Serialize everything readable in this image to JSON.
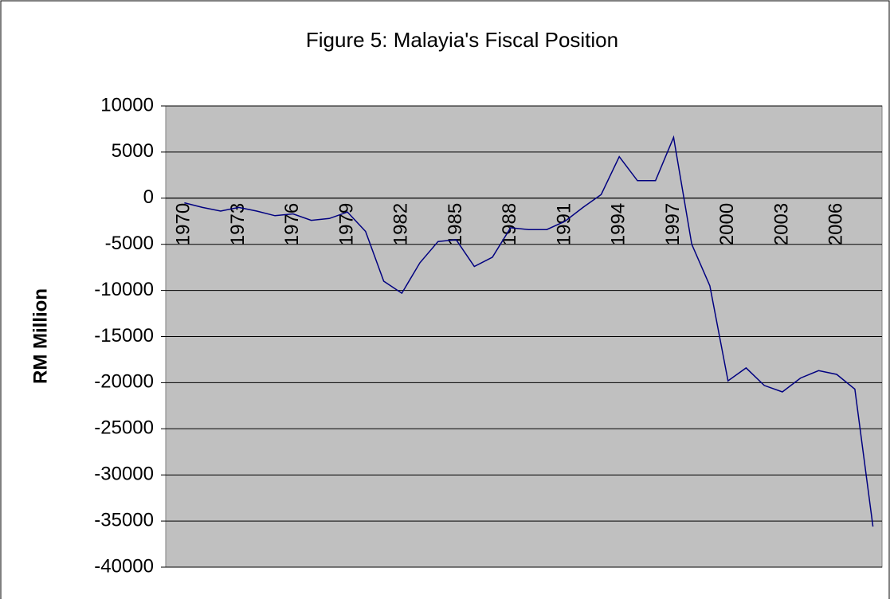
{
  "chart_data": {
    "type": "line",
    "title": "Figure 5: Malayia's Fiscal Position",
    "y_label": "RM Million",
    "categories": [
      "1970",
      null,
      null,
      "1973",
      null,
      null,
      "1976",
      null,
      null,
      "1979",
      null,
      null,
      "1982",
      null,
      null,
      "1985",
      null,
      null,
      "1988",
      null,
      null,
      "1991",
      null,
      null,
      "1994",
      null,
      null,
      "1997",
      null,
      null,
      "2000",
      null,
      null,
      "2003",
      null,
      null,
      "2006",
      null,
      null
    ],
    "series": [
      {
        "name": "Fiscal Position",
        "color": "#000080",
        "values": [
          -500,
          -1000,
          -1400,
          -1000,
          -1400,
          -1900,
          -1700,
          -2400,
          -2200,
          -1500,
          -3600,
          -9000,
          -10300,
          -7000,
          -4700,
          -4500,
          -7400,
          -6400,
          -3200,
          -3400,
          -3400,
          -2500,
          -1000,
          400,
          4500,
          1900,
          1900,
          6600,
          -5000,
          -9500,
          -19800,
          -18400,
          -20300,
          -21000,
          -19500,
          -18700,
          -19100,
          -20700,
          -35600
        ]
      }
    ],
    "ylim": [
      -40000,
      10000
    ],
    "yticks": [
      -40000,
      -35000,
      -30000,
      -25000,
      -20000,
      -15000,
      -10000,
      -5000,
      0,
      5000,
      10000
    ],
    "grid": true,
    "plot_background": "#c0c0c0"
  }
}
